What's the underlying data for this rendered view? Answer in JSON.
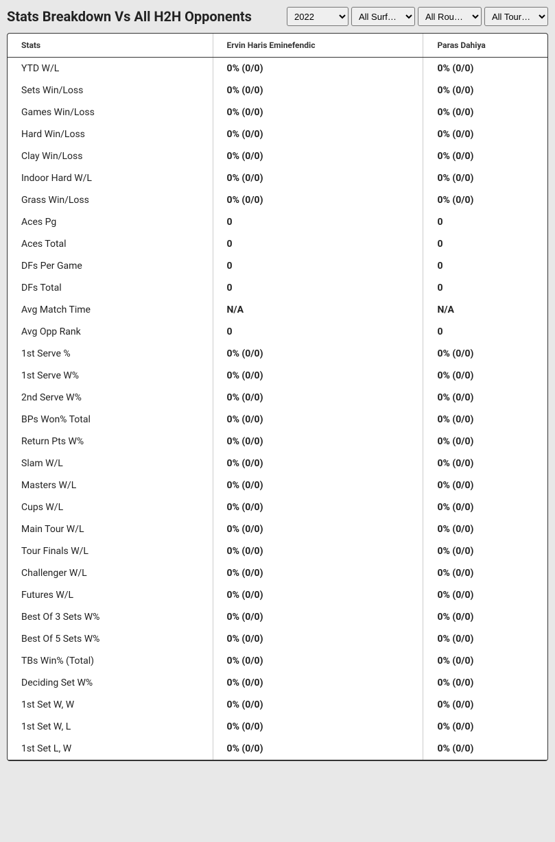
{
  "title": "Stats Breakdown Vs All H2H Opponents",
  "filters": {
    "year": {
      "selected": "2022",
      "options": [
        "2022"
      ]
    },
    "surface": {
      "selected": "All Surf…",
      "options": [
        "All Surf…"
      ]
    },
    "round": {
      "selected": "All Rou…",
      "options": [
        "All Rou…"
      ]
    },
    "tour": {
      "selected": "All Tour…",
      "options": [
        "All Tour…"
      ]
    }
  },
  "table": {
    "headers": {
      "stats": "Stats",
      "player1": "Ervin Haris Eminefendic",
      "player2": "Paras Dahiya"
    },
    "rows": [
      {
        "stat": "YTD W/L",
        "p1": "0% (0/0)",
        "p2": "0% (0/0)"
      },
      {
        "stat": "Sets Win/Loss",
        "p1": "0% (0/0)",
        "p2": "0% (0/0)"
      },
      {
        "stat": "Games Win/Loss",
        "p1": "0% (0/0)",
        "p2": "0% (0/0)"
      },
      {
        "stat": "Hard Win/Loss",
        "p1": "0% (0/0)",
        "p2": "0% (0/0)"
      },
      {
        "stat": "Clay Win/Loss",
        "p1": "0% (0/0)",
        "p2": "0% (0/0)"
      },
      {
        "stat": "Indoor Hard W/L",
        "p1": "0% (0/0)",
        "p2": "0% (0/0)"
      },
      {
        "stat": "Grass Win/Loss",
        "p1": "0% (0/0)",
        "p2": "0% (0/0)"
      },
      {
        "stat": "Aces Pg",
        "p1": "0",
        "p2": "0"
      },
      {
        "stat": "Aces Total",
        "p1": "0",
        "p2": "0"
      },
      {
        "stat": "DFs Per Game",
        "p1": "0",
        "p2": "0"
      },
      {
        "stat": "DFs Total",
        "p1": "0",
        "p2": "0"
      },
      {
        "stat": "Avg Match Time",
        "p1": "N/A",
        "p2": "N/A"
      },
      {
        "stat": "Avg Opp Rank",
        "p1": "0",
        "p2": "0"
      },
      {
        "stat": "1st Serve %",
        "p1": "0% (0/0)",
        "p2": "0% (0/0)"
      },
      {
        "stat": "1st Serve W%",
        "p1": "0% (0/0)",
        "p2": "0% (0/0)"
      },
      {
        "stat": "2nd Serve W%",
        "p1": "0% (0/0)",
        "p2": "0% (0/0)"
      },
      {
        "stat": "BPs Won% Total",
        "p1": "0% (0/0)",
        "p2": "0% (0/0)"
      },
      {
        "stat": "Return Pts W%",
        "p1": "0% (0/0)",
        "p2": "0% (0/0)"
      },
      {
        "stat": "Slam W/L",
        "p1": "0% (0/0)",
        "p2": "0% (0/0)"
      },
      {
        "stat": "Masters W/L",
        "p1": "0% (0/0)",
        "p2": "0% (0/0)"
      },
      {
        "stat": "Cups W/L",
        "p1": "0% (0/0)",
        "p2": "0% (0/0)"
      },
      {
        "stat": "Main Tour W/L",
        "p1": "0% (0/0)",
        "p2": "0% (0/0)"
      },
      {
        "stat": "Tour Finals W/L",
        "p1": "0% (0/0)",
        "p2": "0% (0/0)"
      },
      {
        "stat": "Challenger W/L",
        "p1": "0% (0/0)",
        "p2": "0% (0/0)"
      },
      {
        "stat": "Futures W/L",
        "p1": "0% (0/0)",
        "p2": "0% (0/0)"
      },
      {
        "stat": "Best Of 3 Sets W%",
        "p1": "0% (0/0)",
        "p2": "0% (0/0)"
      },
      {
        "stat": "Best Of 5 Sets W%",
        "p1": "0% (0/0)",
        "p2": "0% (0/0)"
      },
      {
        "stat": "TBs Win% (Total)",
        "p1": "0% (0/0)",
        "p2": "0% (0/0)"
      },
      {
        "stat": "Deciding Set W%",
        "p1": "0% (0/0)",
        "p2": "0% (0/0)"
      },
      {
        "stat": "1st Set W, W",
        "p1": "0% (0/0)",
        "p2": "0% (0/0)"
      },
      {
        "stat": "1st Set W, L",
        "p1": "0% (0/0)",
        "p2": "0% (0/0)"
      },
      {
        "stat": "1st Set L, W",
        "p1": "0% (0/0)",
        "p2": "0% (0/0)"
      }
    ]
  }
}
